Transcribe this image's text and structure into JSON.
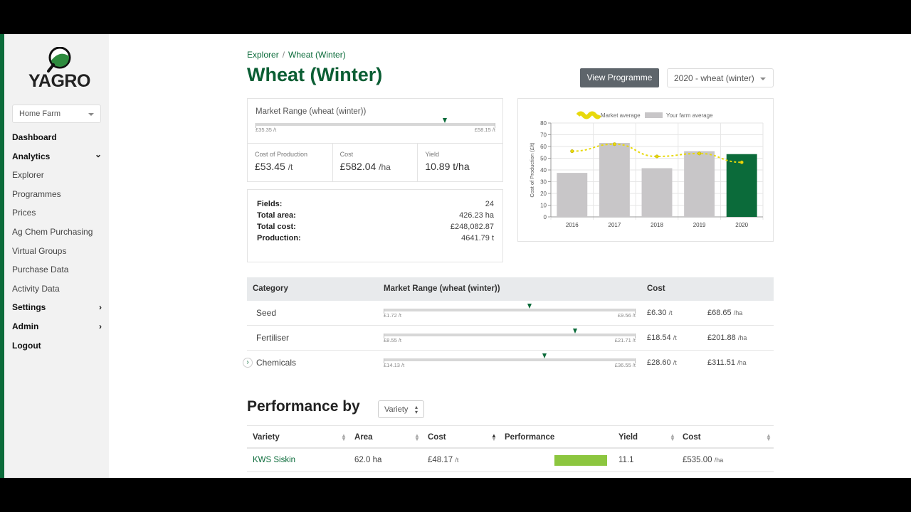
{
  "brand": {
    "name": "YAGRO"
  },
  "sidebar": {
    "farm": "Home Farm",
    "items": [
      {
        "label": "Dashboard",
        "bold": true
      },
      {
        "label": "Analytics",
        "bold": true,
        "chevron": "⌄"
      },
      {
        "label": "Explorer"
      },
      {
        "label": "Programmes"
      },
      {
        "label": "Prices"
      },
      {
        "label": "Ag Chem Purchasing"
      },
      {
        "label": "Virtual Groups"
      },
      {
        "label": "Purchase Data"
      },
      {
        "label": "Activity Data"
      },
      {
        "label": "Settings",
        "bold": true,
        "chevron": "›"
      },
      {
        "label": "Admin",
        "bold": true,
        "chevron": "›"
      },
      {
        "label": "Logout",
        "bold": true
      }
    ]
  },
  "breadcrumb": {
    "root": "Explorer",
    "sep": "/",
    "current": "Wheat (Winter)"
  },
  "header": {
    "title": "Wheat (Winter)",
    "view_button": "View Programme",
    "year": "2020 - wheat (winter)"
  },
  "market_range": {
    "label": "Market Range (wheat (winter))",
    "min": "£35.35 /t",
    "max": "£58.15 /t",
    "position": 0.79
  },
  "stats": [
    {
      "label": "Cost of Production",
      "value": "£53.45",
      "unit": "/t"
    },
    {
      "label": "Cost",
      "value": "£582.04",
      "unit": "/ha"
    },
    {
      "label": "Yield",
      "value": "10.89 t/ha",
      "unit": ""
    }
  ],
  "summary": [
    {
      "key": "Fields:",
      "value": "24"
    },
    {
      "key": "Total area:",
      "value": "426.23 ha"
    },
    {
      "key": "Total cost:",
      "value": "£248,082.87"
    },
    {
      "key": "Production:",
      "value": "4641.79 t"
    }
  ],
  "chart_data": {
    "type": "bar",
    "categories": [
      "2016",
      "2017",
      "2018",
      "2019",
      "2020"
    ],
    "series": [
      {
        "name": "Your farm average",
        "type": "bar",
        "values": [
          37.5,
          63,
          41.5,
          56,
          53.5
        ]
      },
      {
        "name": "Market average",
        "type": "line",
        "values": [
          56,
          62,
          51.5,
          54,
          46.5
        ]
      }
    ],
    "ylabel": "Cost of Production (£/t)",
    "xlabel": "",
    "ylim": [
      0,
      80
    ],
    "yticks": [
      "0",
      "10",
      "20",
      "30",
      "40",
      "50",
      "60",
      "70",
      "80"
    ],
    "highlight_color": "#0b6b3a",
    "bar_color": "#c8c6c8",
    "line_color": "#e8d90c",
    "legend": "top"
  },
  "categories_table": {
    "headers": {
      "category": "Category",
      "range": "Market Range (wheat (winter))",
      "cost": "Cost"
    },
    "rows": [
      {
        "name": "Seed",
        "min": "£1.72 /t",
        "max": "£9.56 /t",
        "position": 0.58,
        "cost_t": "£6.30",
        "cost_t_unit": "/t",
        "cost_ha": "£68.65",
        "cost_ha_unit": "/ha"
      },
      {
        "name": "Fertiliser",
        "min": "£8.55 /t",
        "max": "£21.71 /t",
        "position": 0.76,
        "cost_t": "£18.54",
        "cost_t_unit": "/t",
        "cost_ha": "£201.88",
        "cost_ha_unit": "/ha"
      },
      {
        "name": "Chemicals",
        "min": "£14.13 /t",
        "max": "£36.55 /t",
        "position": 0.64,
        "cost_t": "£28.60",
        "cost_t_unit": "/t",
        "cost_ha": "£311.51",
        "cost_ha_unit": "/ha"
      }
    ]
  },
  "performance": {
    "title": "Performance by",
    "group_by": "Variety",
    "headers": [
      "Variety",
      "Area",
      "Cost",
      "Performance",
      "Yield",
      "Cost"
    ],
    "rows": [
      {
        "variety": "KWS Siskin",
        "area": "62.0 ha",
        "cost": "£48.17",
        "cost_unit": "/t",
        "performance": 1.0,
        "yield": "11.1",
        "cost_ha": "£535.00",
        "cost_ha_unit": "/ha"
      }
    ]
  }
}
